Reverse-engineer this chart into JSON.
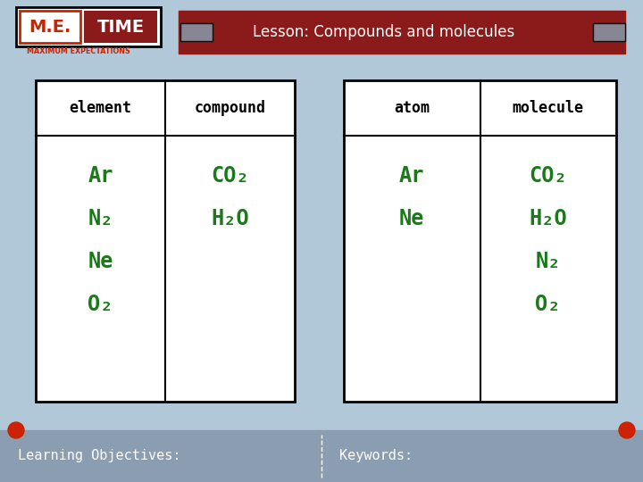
{
  "title": "Lesson: Compounds and molecules",
  "title_color": "#ffffff",
  "title_bg": "#8B1A1A",
  "bg_color": "#b0c8d8",
  "logo_text_ME": "M.E.",
  "logo_text_TIME": "TIME",
  "logo_sub": "MAXIMUM EXPECTATIONS",
  "table1_headers": [
    "element",
    "compound"
  ],
  "table2_headers": [
    "atom",
    "molecule"
  ],
  "header_color": "#000000",
  "cell_text_color": "#1a7a1a",
  "table_bg": "#ffffff",
  "table_border": "#000000",
  "bottom_bar_color": "#8b9db0",
  "bottom_left_label": "Learning Objectives:",
  "bottom_right_label": "Keywords:",
  "bottom_text_color": "#ffffff",
  "red_dot_color": "#cc2200",
  "table1_col1": [
    "Ar",
    "N₂",
    "Ne",
    "O₂"
  ],
  "table1_col2": [
    "CO₂",
    "H₂O"
  ],
  "table2_col1": [
    "Ar",
    "Ne"
  ],
  "table2_col2": [
    "CO₂",
    "H₂O",
    "N₂",
    "O₂"
  ],
  "tape_color": "#8899aa"
}
